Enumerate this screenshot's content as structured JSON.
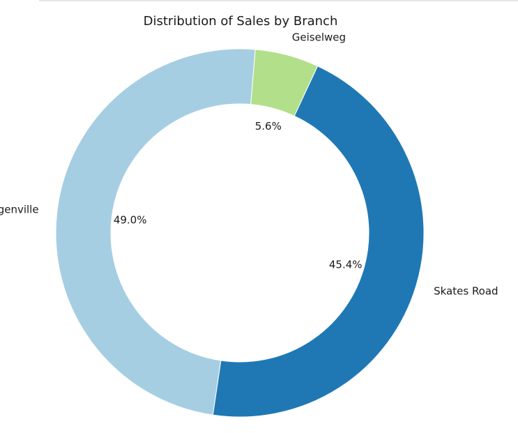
{
  "chart_data": {
    "type": "pie",
    "style": "donut",
    "title": "Distribution of Sales by Branch",
    "slices": [
      {
        "label": "Skates Road",
        "value": 45.4,
        "pct_label": "45.4%",
        "color": "#1f78b4"
      },
      {
        "label": "Bergenville",
        "value": 49.0,
        "pct_label": "49.0%",
        "color": "#a6cee3"
      },
      {
        "label": "Geiselweg",
        "value": 5.6,
        "pct_label": "5.6%",
        "color": "#b2df8a"
      }
    ],
    "start_angle_deg": 65,
    "direction": "clockwise",
    "legend": "none"
  }
}
